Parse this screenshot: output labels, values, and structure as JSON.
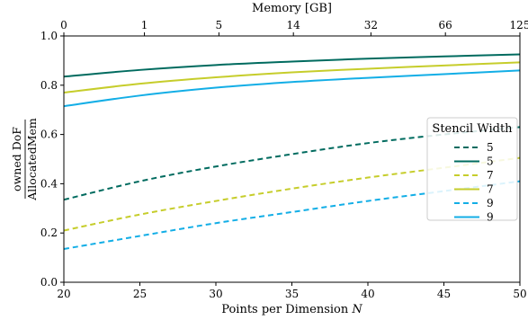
{
  "chart_data": {
    "type": "line",
    "xlabel_main": "Points per Dimension",
    "xlabel_var": "N",
    "ylabel_num": "owned DoF",
    "ylabel_den": "AllocatedMem",
    "top_axis_label": "Memory [GB]",
    "xlim": [
      20,
      50
    ],
    "ylim": [
      0.0,
      1.0
    ],
    "x_ticks": [
      20,
      25,
      30,
      35,
      40,
      45,
      50
    ],
    "y_ticks": [
      "0.0",
      "0.2",
      "0.4",
      "0.6",
      "0.8",
      "1.0"
    ],
    "top_ticks": [
      {
        "label": "0",
        "n": 20.0
      },
      {
        "label": "1",
        "n": 25.3
      },
      {
        "label": "5",
        "n": 30.2
      },
      {
        "label": "14",
        "n": 35.1
      },
      {
        "label": "32",
        "n": 40.2
      },
      {
        "label": "66",
        "n": 45.1
      },
      {
        "label": "125",
        "n": 50.0
      }
    ],
    "legend_title": "Stencil Width",
    "legend_position": "right",
    "colors": {
      "w5": "#006b5f",
      "w7": "#c6cd2b",
      "w9": "#13aee6"
    },
    "series": [
      {
        "name": "5",
        "style": "dashed",
        "color": "#006b5f",
        "x": [
          20,
          25,
          30,
          35,
          40,
          45,
          50
        ],
        "y": [
          0.335,
          0.41,
          0.47,
          0.52,
          0.565,
          0.6,
          0.63
        ]
      },
      {
        "name": "5",
        "style": "solid",
        "color": "#006b5f",
        "x": [
          20,
          25,
          30,
          35,
          40,
          45,
          50
        ],
        "y": [
          0.835,
          0.862,
          0.882,
          0.896,
          0.908,
          0.917,
          0.925
        ]
      },
      {
        "name": "7",
        "style": "dashed",
        "color": "#c6cd2b",
        "x": [
          20,
          25,
          30,
          35,
          40,
          45,
          50
        ],
        "y": [
          0.21,
          0.275,
          0.33,
          0.38,
          0.425,
          0.465,
          0.505
        ]
      },
      {
        "name": "7",
        "style": "solid",
        "color": "#c6cd2b",
        "x": [
          20,
          25,
          30,
          35,
          40,
          45,
          50
        ],
        "y": [
          0.77,
          0.806,
          0.832,
          0.852,
          0.867,
          0.88,
          0.893
        ]
      },
      {
        "name": "9",
        "style": "dashed",
        "color": "#13aee6",
        "x": [
          20,
          25,
          30,
          35,
          40,
          45,
          50
        ],
        "y": [
          0.135,
          0.188,
          0.24,
          0.285,
          0.33,
          0.37,
          0.41
        ]
      },
      {
        "name": "9",
        "style": "solid",
        "color": "#13aee6",
        "x": [
          20,
          25,
          30,
          35,
          40,
          45,
          50
        ],
        "y": [
          0.715,
          0.758,
          0.79,
          0.813,
          0.83,
          0.845,
          0.86
        ]
      }
    ]
  }
}
